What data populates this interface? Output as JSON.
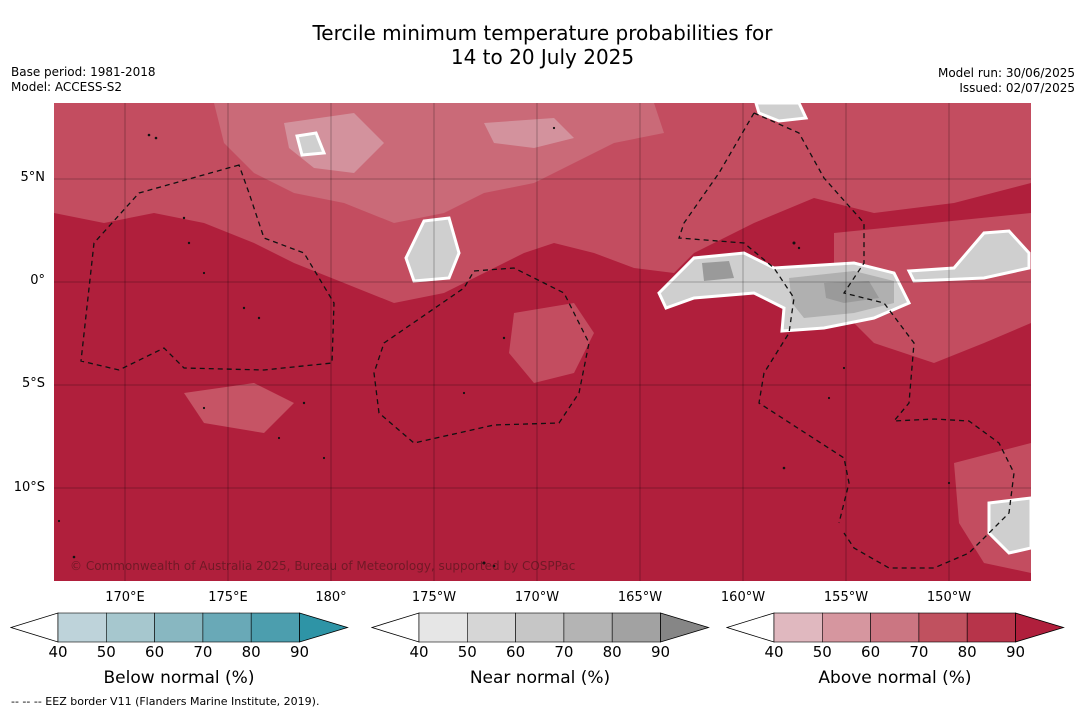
{
  "title_line1": "Tercile minimum temperature probabilities for",
  "title_line2": "14 to 20 July 2025",
  "base_period": "Base period: 1981-2018",
  "model": "Model: ACCESS-S2",
  "model_run": "Model run: 30/06/2025",
  "issued": "Issued: 02/07/2025",
  "lat_labels": [
    "5°N",
    "0°",
    "5°S",
    "10°S"
  ],
  "lon_labels": [
    "170°E",
    "175°E",
    "180°",
    "175°W",
    "170°W",
    "165°W",
    "160°W",
    "155°W",
    "150°W"
  ],
  "credit": "© Commonwealth of Australia 2025, Bureau of Meteorology, supported by COSPPac",
  "colorbars": [
    {
      "label": "Below normal (%)",
      "ticks": [
        "40",
        "50",
        "60",
        "70",
        "80",
        "90"
      ],
      "colors": [
        "#bed3da",
        "#a6c7ce",
        "#88b7c1",
        "#69a9b7",
        "#4c9eae",
        "#2e94a6"
      ]
    },
    {
      "label": "Near normal (%)",
      "ticks": [
        "40",
        "50",
        "60",
        "70",
        "80",
        "90"
      ],
      "colors": [
        "#e6e6e6",
        "#d6d6d6",
        "#c6c6c6",
        "#b4b4b4",
        "#a2a2a2",
        "#868686"
      ]
    },
    {
      "label": "Above normal (%)",
      "ticks": [
        "40",
        "50",
        "60",
        "70",
        "80",
        "90"
      ],
      "colors": [
        "#e0b8bf",
        "#d6969f",
        "#cb7682",
        "#c0515f",
        "#b7344a",
        "#b01f3c"
      ]
    }
  ],
  "footnote": "--  --  -- EEZ border V11 (Flanders Marine Institute, 2019).",
  "map_colors": {
    "dominant": "#b01f3c",
    "above_80": "#bc3850",
    "above_70": "#c65465",
    "above_60": "#cd7482",
    "above_50": "#d7a0a8",
    "near": "#cfcfcf",
    "near_mid": "#b0b0b0",
    "near_high": "#9a9a9a"
  }
}
